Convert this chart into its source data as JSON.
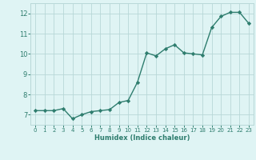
{
  "x": [
    0,
    1,
    2,
    3,
    4,
    5,
    6,
    7,
    8,
    9,
    10,
    11,
    12,
    13,
    14,
    15,
    16,
    17,
    18,
    19,
    20,
    21,
    22,
    23
  ],
  "y": [
    7.2,
    7.2,
    7.2,
    7.3,
    6.8,
    7.0,
    7.15,
    7.2,
    7.25,
    7.6,
    7.7,
    8.6,
    10.05,
    9.9,
    10.25,
    10.45,
    10.05,
    10.0,
    9.95,
    11.3,
    11.85,
    12.05,
    12.05,
    11.5
  ],
  "xlim": [
    -0.5,
    23.5
  ],
  "ylim": [
    6.5,
    12.5
  ],
  "yticks": [
    7,
    8,
    9,
    10,
    11,
    12
  ],
  "xticks": [
    0,
    1,
    2,
    3,
    4,
    5,
    6,
    7,
    8,
    9,
    10,
    11,
    12,
    13,
    14,
    15,
    16,
    17,
    18,
    19,
    20,
    21,
    22,
    23
  ],
  "xlabel": "Humidex (Indice chaleur)",
  "line_color": "#2e7d6e",
  "bg_color": "#dff4f4",
  "grid_color": "#b8d8d8",
  "marker": "D",
  "marker_size": 2.2,
  "line_width": 1.0,
  "tick_color": "#2e7d6e",
  "xlabel_fontsize": 6.0,
  "xtick_fontsize": 5.0,
  "ytick_fontsize": 6.0
}
